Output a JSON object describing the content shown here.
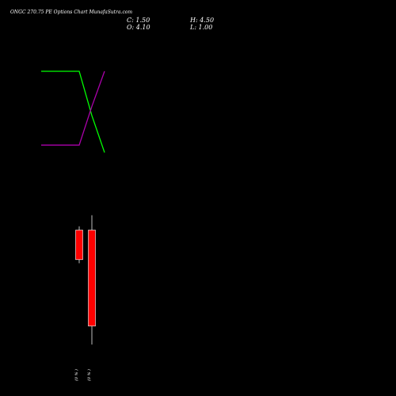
{
  "chart_data": {
    "type": "candlestick",
    "title": "ONGC 270.75 PE Options Chart MunafaSutra.com",
    "ohlc_display": {
      "close": "C: 1.50",
      "high": "H: 4.50",
      "open": "O: 4.10",
      "low": "L: 1.00"
    },
    "x_labels": [
      "(0 % )",
      "(0 % )"
    ],
    "candles": [
      {
        "open": 4.1,
        "high": 4.2,
        "low": 3.2,
        "close": 3.3
      },
      {
        "open": 4.1,
        "high": 4.5,
        "low": 1.0,
        "close": 1.5
      }
    ],
    "price_range": [
      1.0,
      8.4
    ],
    "indicators": [
      {
        "color": "#00ff00",
        "points": [
          [
            -3,
            8.4
          ],
          [
            0,
            8.4
          ],
          [
            1,
            7.2
          ],
          [
            2,
            6.2
          ]
        ]
      },
      {
        "color": "#aa00aa",
        "points": [
          [
            -3,
            6.4
          ],
          [
            0,
            6.4
          ],
          [
            1,
            7.45
          ],
          [
            2,
            8.4
          ]
        ]
      }
    ],
    "colors": {
      "background": "#000000",
      "bearish": "#ff0000",
      "wick": "#bbbbbb",
      "text": "#ffffff"
    }
  }
}
